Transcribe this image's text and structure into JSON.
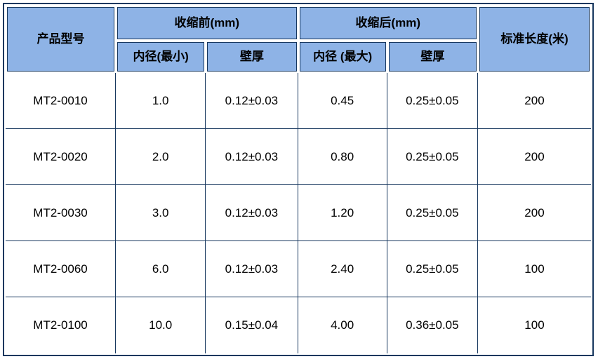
{
  "table": {
    "colors": {
      "header_bg": "#8EB3E6",
      "border": "#17375E",
      "text": "#000000"
    },
    "header": {
      "product_model": "产品型号",
      "before_group": "收缩前(mm)",
      "after_group": "收缩后(mm)",
      "before_inner": "内径(最小)",
      "before_wall": "壁厚",
      "after_inner": "内径 (最大)",
      "after_wall": "壁厚",
      "std_length": "标准长度(米)"
    },
    "rows": [
      {
        "model": "MT2-0010",
        "before_inner": "1.0",
        "before_wall": "0.12±0.03",
        "after_inner": "0.45",
        "after_wall": "0.25±0.05",
        "length": "200"
      },
      {
        "model": "MT2-0020",
        "before_inner": "2.0",
        "before_wall": "0.12±0.03",
        "after_inner": "0.80",
        "after_wall": "0.25±0.05",
        "length": "200"
      },
      {
        "model": "MT2-0030",
        "before_inner": "3.0",
        "before_wall": "0.12±0.03",
        "after_inner": "1.20",
        "after_wall": "0.25±0.05",
        "length": "200"
      },
      {
        "model": "MT2-0060",
        "before_inner": "6.0",
        "before_wall": "0.12±0.03",
        "after_inner": "2.40",
        "after_wall": "0.25±0.05",
        "length": "100"
      },
      {
        "model": "MT2-0100",
        "before_inner": "10.0",
        "before_wall": "0.15±0.04",
        "after_inner": "4.00",
        "after_wall": "0.36±0.05",
        "length": "100"
      }
    ]
  }
}
